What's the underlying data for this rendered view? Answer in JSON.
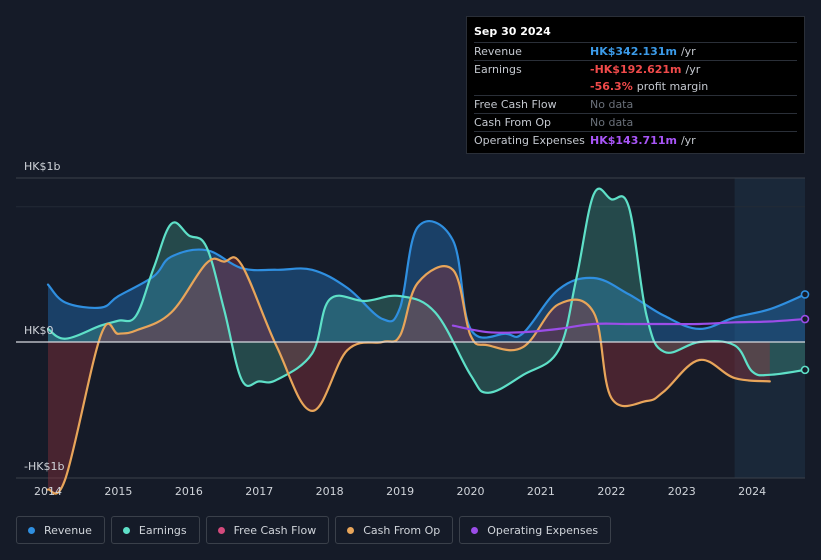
{
  "tooltip": {
    "date": "Sep 30 2024",
    "rows": [
      {
        "label": "Revenue",
        "value": "HK$342.131m",
        "unit": "/yr",
        "color": "#3b9ae8"
      },
      {
        "label": "Earnings",
        "value": "-HK$192.621m",
        "unit": "/yr",
        "color": "#f04a4a"
      },
      {
        "label": "",
        "value": "-56.3%",
        "unit": "profit margin",
        "color": "#f04a4a"
      },
      {
        "label": "Free Cash Flow",
        "value": "No data",
        "unit": "",
        "color": "#6a707a"
      },
      {
        "label": "Cash From Op",
        "value": "No data",
        "unit": "",
        "color": "#6a707a"
      },
      {
        "label": "Operating Expenses",
        "value": "HK$143.711m",
        "unit": "/yr",
        "color": "#a855f7"
      }
    ]
  },
  "legend": [
    {
      "label": "Revenue",
      "color": "#2f8fe0"
    },
    {
      "label": "Earnings",
      "color": "#5ee0c8"
    },
    {
      "label": "Free Cash Flow",
      "color": "#d44a7c"
    },
    {
      "label": "Cash From Op",
      "color": "#e8a55a"
    },
    {
      "label": "Operating Expenses",
      "color": "#9b4de8"
    }
  ],
  "chart_data": {
    "type": "area",
    "y_unit": "HK$ millions",
    "ylim": [
      -1000,
      1000
    ],
    "y_tick_labels": [
      "HK$1b",
      "HK$0",
      "-HK$1b"
    ],
    "x_ticks": [
      "2014",
      "2015",
      "2016",
      "2017",
      "2018",
      "2019",
      "2020",
      "2021",
      "2022",
      "2023",
      "2024"
    ],
    "xlim": [
      2014.0,
      2024.75
    ],
    "forecast_region_start": 2023.75,
    "series": [
      {
        "name": "Revenue",
        "color": "#2f8fe0",
        "points": [
          [
            2014.0,
            350
          ],
          [
            2014.25,
            240
          ],
          [
            2014.75,
            210
          ],
          [
            2015.0,
            280
          ],
          [
            2015.5,
            400
          ],
          [
            2015.75,
            520
          ],
          [
            2016.25,
            560
          ],
          [
            2016.75,
            450
          ],
          [
            2017.25,
            440
          ],
          [
            2017.75,
            440
          ],
          [
            2018.25,
            330
          ],
          [
            2018.75,
            140
          ],
          [
            2019.0,
            210
          ],
          [
            2019.25,
            700
          ],
          [
            2019.75,
            620
          ],
          [
            2020.0,
            80
          ],
          [
            2020.5,
            50
          ],
          [
            2020.75,
            55
          ],
          [
            2021.25,
            320
          ],
          [
            2021.75,
            390
          ],
          [
            2022.25,
            290
          ],
          [
            2022.75,
            160
          ],
          [
            2023.25,
            80
          ],
          [
            2023.75,
            150
          ],
          [
            2024.25,
            200
          ],
          [
            2024.75,
            290
          ]
        ]
      },
      {
        "name": "Earnings",
        "color": "#5ee0c8",
        "points": [
          [
            2014.0,
            80
          ],
          [
            2014.25,
            20
          ],
          [
            2014.75,
            100
          ],
          [
            2015.0,
            130
          ],
          [
            2015.25,
            160
          ],
          [
            2015.5,
            450
          ],
          [
            2015.75,
            720
          ],
          [
            2016.0,
            650
          ],
          [
            2016.25,
            580
          ],
          [
            2016.5,
            200
          ],
          [
            2016.75,
            -230
          ],
          [
            2017.0,
            -240
          ],
          [
            2017.25,
            -230
          ],
          [
            2017.75,
            -70
          ],
          [
            2018.0,
            260
          ],
          [
            2018.5,
            250
          ],
          [
            2019.0,
            280
          ],
          [
            2019.5,
            180
          ],
          [
            2020.0,
            -200
          ],
          [
            2020.25,
            -310
          ],
          [
            2020.75,
            -200
          ],
          [
            2021.25,
            -50
          ],
          [
            2021.5,
            380
          ],
          [
            2021.75,
            900
          ],
          [
            2022.0,
            870
          ],
          [
            2022.25,
            820
          ],
          [
            2022.5,
            160
          ],
          [
            2022.75,
            -60
          ],
          [
            2023.25,
            0
          ],
          [
            2023.75,
            -20
          ],
          [
            2024.0,
            -180
          ],
          [
            2024.25,
            -200
          ],
          [
            2024.75,
            -170
          ]
        ]
      },
      {
        "name": "Cash From Op",
        "color": "#e8a55a",
        "points": [
          [
            2014.0,
            -900
          ],
          [
            2014.25,
            -830
          ],
          [
            2014.75,
            40
          ],
          [
            2015.0,
            50
          ],
          [
            2015.25,
            70
          ],
          [
            2015.75,
            180
          ],
          [
            2016.25,
            480
          ],
          [
            2016.5,
            490
          ],
          [
            2016.75,
            470
          ],
          [
            2017.25,
            -30
          ],
          [
            2017.75,
            -420
          ],
          [
            2018.25,
            -50
          ],
          [
            2018.75,
            0
          ],
          [
            2019.0,
            40
          ],
          [
            2019.25,
            360
          ],
          [
            2019.75,
            440
          ],
          [
            2020.0,
            40
          ],
          [
            2020.25,
            -20
          ],
          [
            2020.75,
            -30
          ],
          [
            2021.25,
            230
          ],
          [
            2021.75,
            180
          ],
          [
            2022.0,
            -340
          ],
          [
            2022.5,
            -360
          ],
          [
            2022.75,
            -300
          ],
          [
            2023.25,
            -110
          ],
          [
            2023.75,
            -220
          ],
          [
            2024.25,
            -240
          ]
        ]
      },
      {
        "name": "Operating Expenses",
        "color": "#9b4de8",
        "points": [
          [
            2019.75,
            100
          ],
          [
            2020.25,
            60
          ],
          [
            2020.75,
            60
          ],
          [
            2021.25,
            80
          ],
          [
            2021.75,
            110
          ],
          [
            2022.25,
            110
          ],
          [
            2022.75,
            110
          ],
          [
            2023.25,
            110
          ],
          [
            2023.75,
            120
          ],
          [
            2024.25,
            125
          ],
          [
            2024.75,
            140
          ]
        ]
      }
    ]
  }
}
